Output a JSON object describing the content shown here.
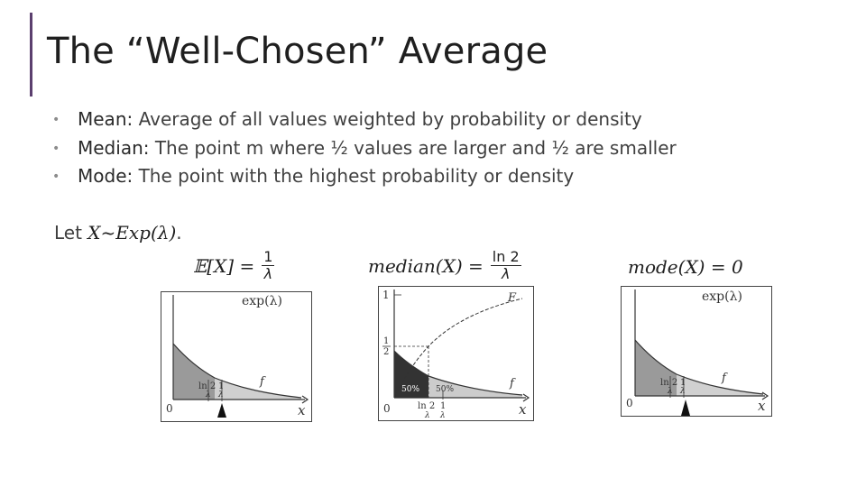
{
  "slide": {
    "title": "The “Well-Chosen” Average",
    "accent_color": "#5b3f6e"
  },
  "bullets": [
    {
      "term": "Mean:",
      "text": " Average of all values weighted by probability or density"
    },
    {
      "term": "Median:",
      "text": " The point m where ½ values are larger and ½ are smaller"
    },
    {
      "term": "Mode:",
      "text": " The point with the highest probability or density"
    }
  ],
  "let_line": {
    "prefix": "Let ",
    "expr": "X~Exp(λ)",
    "suffix": "."
  },
  "formulas": {
    "mean": {
      "lhs": "𝔼[X] =",
      "num": "1",
      "den": "λ"
    },
    "median": {
      "lhs": "median(X) =",
      "num": "ln 2",
      "den": "λ"
    },
    "mode": {
      "lhs": "mode(X) = 0"
    }
  },
  "plots": {
    "mean": {
      "label": "exp(λ)",
      "curve_label": "f",
      "origin": "0",
      "x_axis": "x",
      "tick_ln2": "ln 2",
      "tick_ln2_den": "λ",
      "tick_1": "1",
      "tick_1_den": "λ"
    },
    "median": {
      "cdf_label": "F",
      "curve_label": "f",
      "origin": "0",
      "x_axis": "x",
      "y_top": "1",
      "y_half_num": "1",
      "y_half_den": "2",
      "left_area": "50%",
      "right_area": "50%",
      "tick_ln2": "ln 2",
      "tick_ln2_den": "λ",
      "tick_1": "1",
      "tick_1_den": "λ"
    },
    "mode": {
      "label": "exp(λ)",
      "curve_label": "f",
      "origin": "0",
      "x_axis": "x",
      "tick_ln2": "ln 2",
      "tick_ln2_den": "λ",
      "tick_1": "1",
      "tick_1_den": "λ"
    }
  }
}
